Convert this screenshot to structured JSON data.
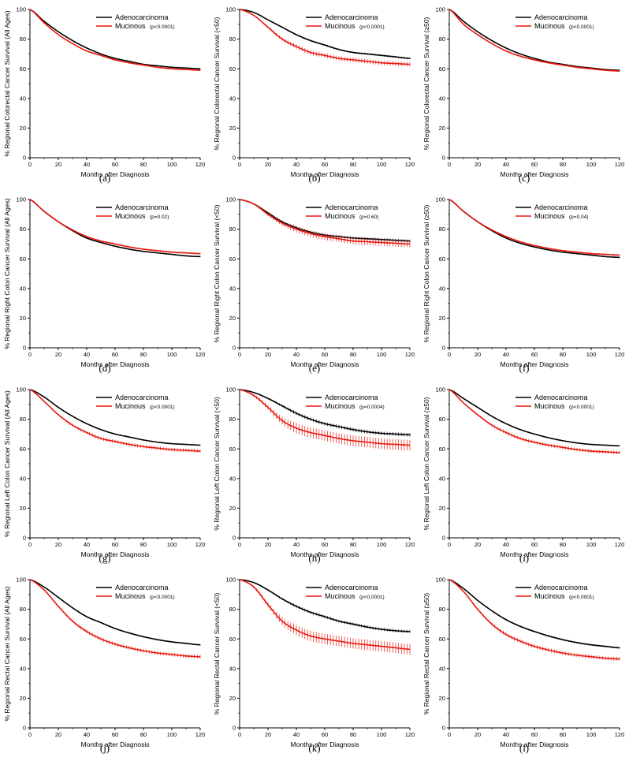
{
  "colors": {
    "adenocarcinoma": "#000000",
    "mucinous": "#e8190f",
    "axis": "#000000"
  },
  "shared": {
    "xlabel": "Months after Diagnosis",
    "x_ticks": [
      "0",
      "20",
      "40",
      "60",
      "80",
      "100",
      "120"
    ],
    "y_ticks": [
      "0",
      "20",
      "40",
      "60",
      "80",
      "100"
    ]
  },
  "chart_data": [
    {
      "type": "line",
      "caption": "(a)",
      "ylabel": "% Regional Colorectal Cancer Survival (All Ages)",
      "xlim": [
        0,
        120
      ],
      "ylim": [
        0,
        100
      ],
      "legend": "top-right",
      "pvalue": "(p<0.0001)",
      "series": [
        {
          "name": "Adenocarcinoma",
          "x": [
            0,
            10,
            20,
            30,
            40,
            50,
            60,
            70,
            80,
            90,
            100,
            110,
            120
          ],
          "y": [
            100,
            92,
            85,
            79,
            74,
            70,
            67,
            65,
            63,
            62,
            61,
            60.5,
            60
          ],
          "err": 0.3
        },
        {
          "name": "Mucinous",
          "x": [
            0,
            10,
            20,
            30,
            40,
            50,
            60,
            70,
            80,
            90,
            100,
            110,
            120
          ],
          "y": [
            100,
            91,
            83,
            77,
            72,
            69,
            66,
            64,
            62.5,
            61,
            60,
            59.5,
            59
          ],
          "err": 0.5
        }
      ]
    },
    {
      "type": "line",
      "caption": "(b)",
      "ylabel": "% Regional Colorectal Cancer Survival (<50)",
      "xlim": [
        0,
        120
      ],
      "ylim": [
        0,
        100
      ],
      "legend": "top-right",
      "pvalue": "(p<0.0001)",
      "series": [
        {
          "name": "Adenocarcinoma",
          "x": [
            0,
            10,
            20,
            30,
            40,
            50,
            60,
            70,
            80,
            90,
            100,
            110,
            120
          ],
          "y": [
            100,
            98,
            93,
            88,
            83,
            79,
            76,
            73,
            71,
            70,
            69,
            68,
            67
          ],
          "err": 0.6
        },
        {
          "name": "Mucinous",
          "x": [
            0,
            10,
            20,
            30,
            40,
            50,
            60,
            70,
            80,
            90,
            100,
            110,
            120
          ],
          "y": [
            100,
            96,
            88,
            80,
            75,
            71,
            69,
            67,
            66,
            65,
            64,
            63.5,
            63
          ],
          "err": 1.5
        }
      ]
    },
    {
      "type": "line",
      "caption": "(c)",
      "ylabel": "% Regional Colorectal Cancer Survival (≥50)",
      "xlim": [
        0,
        120
      ],
      "ylim": [
        0,
        100
      ],
      "legend": "top-right",
      "pvalue": "(p<0.0001)",
      "series": [
        {
          "name": "Adenocarcinoma",
          "x": [
            0,
            10,
            20,
            30,
            40,
            50,
            60,
            70,
            80,
            90,
            100,
            110,
            120
          ],
          "y": [
            100,
            92,
            85,
            79,
            74,
            70,
            67,
            64.5,
            63,
            61.5,
            60.5,
            59.5,
            59
          ],
          "err": 0.3
        },
        {
          "name": "Mucinous",
          "x": [
            0,
            10,
            20,
            30,
            40,
            50,
            60,
            70,
            80,
            90,
            100,
            110,
            120
          ],
          "y": [
            100,
            90,
            83,
            77,
            72,
            68.5,
            66,
            64,
            62.5,
            61,
            60,
            59,
            58.5
          ],
          "err": 0.6
        }
      ]
    },
    {
      "type": "line",
      "caption": "(d)",
      "ylabel": "% Regional Right Colon Cancer Survival (All Ages)",
      "xlim": [
        0,
        120
      ],
      "ylim": [
        0,
        100
      ],
      "legend": "top-right",
      "pvalue": "(p=0.02)",
      "series": [
        {
          "name": "Adenocarcinoma",
          "x": [
            0,
            10,
            20,
            30,
            40,
            50,
            60,
            70,
            80,
            90,
            100,
            110,
            120
          ],
          "y": [
            100,
            92,
            85,
            79,
            74,
            71,
            68.5,
            66.5,
            65,
            64,
            63,
            62,
            61.5
          ],
          "err": 0.4
        },
        {
          "name": "Mucinous",
          "x": [
            0,
            10,
            20,
            30,
            40,
            50,
            60,
            70,
            80,
            90,
            100,
            110,
            120
          ],
          "y": [
            100,
            92,
            85,
            79.5,
            75,
            72,
            70,
            68,
            66.5,
            65.5,
            64.5,
            64,
            63.5
          ],
          "err": 0.6
        }
      ]
    },
    {
      "type": "line",
      "caption": "(e)",
      "ylabel": "% Regional Right Colon Cancer Survival (<50)",
      "xlim": [
        0,
        120
      ],
      "ylim": [
        0,
        100
      ],
      "legend": "top-right",
      "pvalue": "(p=0.60)",
      "series": [
        {
          "name": "Adenocarcinoma",
          "x": [
            0,
            10,
            20,
            30,
            40,
            50,
            60,
            70,
            80,
            90,
            100,
            110,
            120
          ],
          "y": [
            100,
            97,
            91,
            85,
            81,
            78,
            76,
            75,
            74,
            73.5,
            73,
            72.5,
            72
          ],
          "err": 1.0
        },
        {
          "name": "Mucinous",
          "x": [
            0,
            10,
            20,
            30,
            40,
            50,
            60,
            70,
            80,
            90,
            100,
            110,
            120
          ],
          "y": [
            100,
            97,
            90,
            84,
            80,
            77,
            75,
            73.5,
            72,
            71.5,
            71,
            70.5,
            70
          ],
          "err": 2.2
        }
      ]
    },
    {
      "type": "line",
      "caption": "(f)",
      "ylabel": "% Regional Right Colon Cancer Survival (≥50)",
      "xlim": [
        0,
        120
      ],
      "ylim": [
        0,
        100
      ],
      "legend": "top-right",
      "pvalue": "(p=0.04)",
      "series": [
        {
          "name": "Adenocarcinoma",
          "x": [
            0,
            10,
            20,
            30,
            40,
            50,
            60,
            70,
            80,
            90,
            100,
            110,
            120
          ],
          "y": [
            100,
            92,
            85,
            79,
            74,
            70.5,
            68,
            66,
            64.5,
            63.5,
            62.5,
            61.5,
            61
          ],
          "err": 0.4
        },
        {
          "name": "Mucinous",
          "x": [
            0,
            10,
            20,
            30,
            40,
            50,
            60,
            70,
            80,
            90,
            100,
            110,
            120
          ],
          "y": [
            100,
            92,
            85,
            79.5,
            75,
            71.5,
            69,
            67,
            65.5,
            64.5,
            63.5,
            63,
            62.5
          ],
          "err": 0.6
        }
      ]
    },
    {
      "type": "line",
      "caption": "(g)",
      "ylabel": "% Regional Left Colon Cancer Survival (All Ages)",
      "xlim": [
        0,
        120
      ],
      "ylim": [
        0,
        100
      ],
      "legend": "top-right",
      "pvalue": "(p<0.0001)",
      "series": [
        {
          "name": "Adenocarcinoma",
          "x": [
            0,
            10,
            20,
            30,
            40,
            50,
            60,
            70,
            80,
            90,
            100,
            110,
            120
          ],
          "y": [
            100,
            95,
            88,
            82,
            77,
            73,
            70,
            68,
            66,
            64.5,
            63.5,
            63,
            62.5
          ],
          "err": 0.4
        },
        {
          "name": "Mucinous",
          "x": [
            0,
            10,
            20,
            30,
            40,
            50,
            60,
            70,
            80,
            90,
            100,
            110,
            120
          ],
          "y": [
            100,
            92,
            83,
            76,
            71,
            67,
            65,
            63,
            61.5,
            60.5,
            59.5,
            59,
            58.5
          ],
          "err": 1.2
        }
      ]
    },
    {
      "type": "line",
      "caption": "(h)",
      "ylabel": "% Regional Left Colon Cancer Survival (<50)",
      "xlim": [
        0,
        120
      ],
      "ylim": [
        0,
        100
      ],
      "legend": "top-right",
      "pvalue": "(p=0.0004)",
      "series": [
        {
          "name": "Adenocarcinoma",
          "x": [
            0,
            10,
            20,
            30,
            40,
            50,
            60,
            70,
            80,
            90,
            100,
            110,
            120
          ],
          "y": [
            100,
            98,
            94,
            89,
            84,
            80,
            77,
            75,
            73,
            71.5,
            70.5,
            70,
            69.5
          ],
          "err": 1.2
        },
        {
          "name": "Mucinous",
          "x": [
            0,
            10,
            20,
            30,
            40,
            50,
            60,
            70,
            80,
            90,
            100,
            110,
            120
          ],
          "y": [
            100,
            96,
            88,
            79,
            74,
            71,
            69,
            67,
            65.5,
            64.5,
            63.5,
            63,
            62.5
          ],
          "err": 3.5
        }
      ]
    },
    {
      "type": "line",
      "caption": "(i)",
      "ylabel": "% Regional Left Colon Cancer Survival (≥50)",
      "xlim": [
        0,
        120
      ],
      "ylim": [
        0,
        100
      ],
      "legend": "top-right",
      "pvalue": "(p<0.0001)",
      "series": [
        {
          "name": "Adenocarcinoma",
          "x": [
            0,
            10,
            20,
            30,
            40,
            50,
            60,
            70,
            80,
            90,
            100,
            110,
            120
          ],
          "y": [
            100,
            94,
            88,
            82,
            77,
            73,
            70,
            67.5,
            65.5,
            64,
            63,
            62.5,
            62
          ],
          "err": 0.4
        },
        {
          "name": "Mucinous",
          "x": [
            0,
            10,
            20,
            30,
            40,
            50,
            60,
            70,
            80,
            90,
            100,
            110,
            120
          ],
          "y": [
            100,
            91,
            83,
            76,
            71,
            67,
            64.5,
            62.5,
            61,
            59.5,
            58.5,
            58,
            57.5
          ],
          "err": 1.2
        }
      ]
    },
    {
      "type": "line",
      "caption": "(j)",
      "ylabel": "% Regional Rectal Cancer Survival (All Ages)",
      "xlim": [
        0,
        120
      ],
      "ylim": [
        0,
        100
      ],
      "legend": "top-right",
      "pvalue": "(p<0.0001)",
      "series": [
        {
          "name": "Adenocarcinoma",
          "x": [
            0,
            10,
            20,
            30,
            40,
            50,
            60,
            70,
            80,
            90,
            100,
            110,
            120
          ],
          "y": [
            100,
            95,
            88,
            81,
            75,
            71,
            67,
            64,
            61.5,
            59.5,
            58,
            57,
            56
          ],
          "err": 0.5
        },
        {
          "name": "Mucinous",
          "x": [
            0,
            10,
            20,
            30,
            40,
            50,
            60,
            70,
            80,
            90,
            100,
            110,
            120
          ],
          "y": [
            100,
            93,
            82,
            72,
            65,
            60,
            56.5,
            54,
            52,
            50.5,
            49.5,
            48.5,
            48
          ],
          "err": 1.2
        }
      ]
    },
    {
      "type": "line",
      "caption": "(k)",
      "ylabel": "% Regional Rectal Cancer Survival (<50)",
      "xlim": [
        0,
        120
      ],
      "ylim": [
        0,
        100
      ],
      "legend": "top-right",
      "pvalue": "(p<0.0001)",
      "series": [
        {
          "name": "Adenocarcinoma",
          "x": [
            0,
            10,
            20,
            30,
            40,
            50,
            60,
            70,
            80,
            90,
            100,
            110,
            120
          ],
          "y": [
            100,
            98,
            93,
            87,
            82,
            78,
            75,
            72,
            70,
            68,
            66.5,
            65.5,
            65
          ],
          "err": 1.0
        },
        {
          "name": "Mucinous",
          "x": [
            0,
            10,
            20,
            30,
            40,
            50,
            60,
            70,
            80,
            90,
            100,
            110,
            120
          ],
          "y": [
            100,
            95,
            83,
            72,
            66,
            62,
            60,
            58.5,
            57,
            56,
            55,
            54,
            53
          ],
          "err": 3.5
        }
      ]
    },
    {
      "type": "line",
      "caption": "(l)",
      "ylabel": "% Regional Rectal Cancer Survival (≥50)",
      "xlim": [
        0,
        120
      ],
      "ylim": [
        0,
        100
      ],
      "legend": "top-right",
      "pvalue": "(p<0.0001)",
      "series": [
        {
          "name": "Adenocarcinoma",
          "x": [
            0,
            10,
            20,
            30,
            40,
            50,
            60,
            70,
            80,
            90,
            100,
            110,
            120
          ],
          "y": [
            100,
            94,
            86,
            79,
            73,
            68.5,
            65,
            62,
            59.5,
            57.5,
            56,
            55,
            54
          ],
          "err": 0.6
        },
        {
          "name": "Mucinous",
          "x": [
            0,
            10,
            20,
            30,
            40,
            50,
            60,
            70,
            80,
            90,
            100,
            110,
            120
          ],
          "y": [
            100,
            92,
            80,
            70,
            63,
            58.5,
            55,
            52.5,
            50.5,
            49,
            48,
            47,
            46.5
          ],
          "err": 1.3
        }
      ]
    }
  ]
}
